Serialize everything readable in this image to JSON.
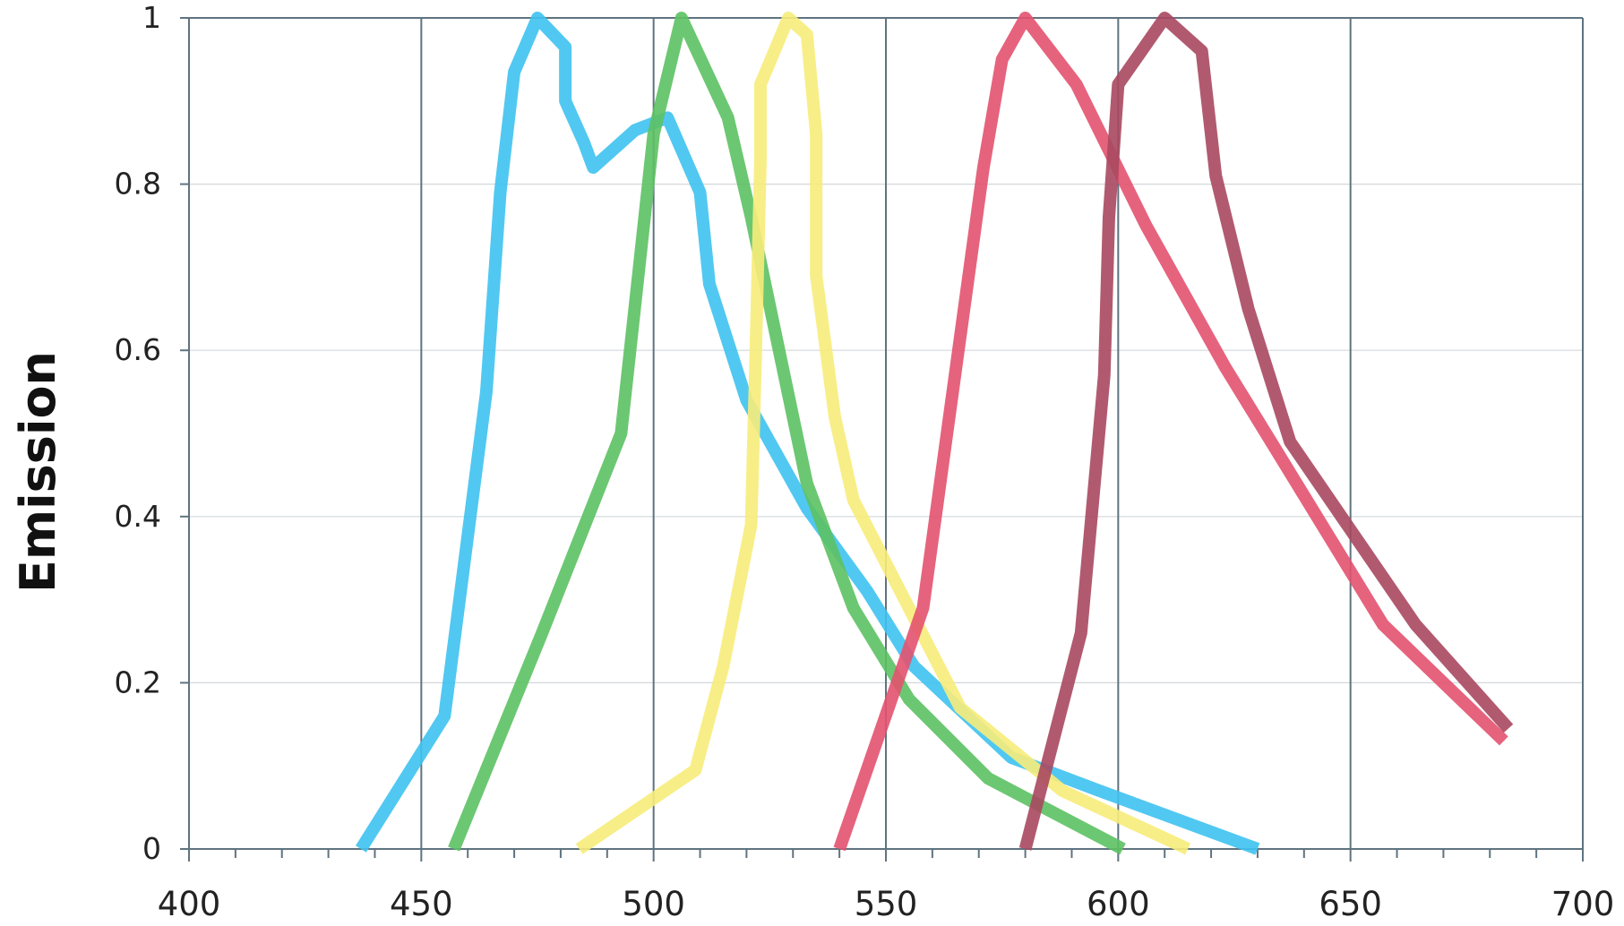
{
  "chart_data": {
    "type": "line",
    "title": "",
    "xlabel": "",
    "ylabel": "Emission",
    "xlim": [
      400,
      700
    ],
    "ylim": [
      0,
      1
    ],
    "x_major_ticks": [
      400,
      450,
      500,
      550,
      600,
      650,
      700
    ],
    "x_tick_labels": [
      "400",
      "450",
      "500",
      "550",
      "600",
      "650",
      "700"
    ],
    "y_ticks": [
      0,
      0.2,
      0.4,
      0.6,
      0.8,
      1
    ],
    "y_tick_labels": [
      "0",
      "0.2",
      "0.4",
      "0.6",
      "0.8",
      "1"
    ],
    "x_minor_tick_step": 10,
    "grid": {
      "vertical": true,
      "horizontal": true
    },
    "legend": "none",
    "colors": {
      "axis": "#5f7380",
      "vertical_grid": "#5f7380",
      "horizontal_grid": "#d3d8db",
      "text": "#222222"
    },
    "series": [
      {
        "color": "#3ec2ef",
        "points": [
          [
            437,
            0
          ],
          [
            455,
            0.16
          ],
          [
            464,
            0.55
          ],
          [
            467,
            0.79
          ],
          [
            470,
            0.935
          ],
          [
            475,
            1
          ],
          [
            481,
            0.965
          ],
          [
            481,
            0.9
          ],
          [
            485,
            0.85
          ],
          [
            487,
            0.82
          ],
          [
            496,
            0.865
          ],
          [
            503,
            0.88
          ],
          [
            510,
            0.79
          ],
          [
            512,
            0.68
          ],
          [
            520,
            0.54
          ],
          [
            533,
            0.41
          ],
          [
            546,
            0.31
          ],
          [
            556,
            0.22
          ],
          [
            577,
            0.11
          ],
          [
            596,
            0.07
          ],
          [
            630,
            0
          ]
        ]
      },
      {
        "color": "#5cc163",
        "points": [
          [
            457,
            0
          ],
          [
            476,
            0.26
          ],
          [
            493,
            0.5
          ],
          [
            500,
            0.86
          ],
          [
            506,
            1
          ],
          [
            516,
            0.88
          ],
          [
            521,
            0.76
          ],
          [
            533,
            0.44
          ],
          [
            543,
            0.29
          ],
          [
            555,
            0.18
          ],
          [
            572,
            0.085
          ],
          [
            601,
            0
          ]
        ]
      },
      {
        "color": "#f7ec7a",
        "points": [
          [
            484,
            0
          ],
          [
            509,
            0.095
          ],
          [
            515,
            0.22
          ],
          [
            521,
            0.39
          ],
          [
            522,
            0.6
          ],
          [
            523,
            0.83
          ],
          [
            523,
            0.92
          ],
          [
            529,
            1
          ],
          [
            533,
            0.98
          ],
          [
            535,
            0.86
          ],
          [
            535,
            0.69
          ],
          [
            539,
            0.52
          ],
          [
            543,
            0.42
          ],
          [
            566,
            0.17
          ],
          [
            588,
            0.07
          ],
          [
            615,
            0
          ]
        ]
      },
      {
        "color": "#e3526f",
        "points": [
          [
            540,
            0
          ],
          [
            558,
            0.29
          ],
          [
            571,
            0.82
          ],
          [
            575,
            0.95
          ],
          [
            580,
            1
          ],
          [
            591,
            0.92
          ],
          [
            606,
            0.75
          ],
          [
            623,
            0.58
          ],
          [
            634,
            0.48
          ],
          [
            657,
            0.27
          ],
          [
            683,
            0.13
          ]
        ]
      },
      {
        "color": "#a8485f",
        "points": [
          [
            580,
            0
          ],
          [
            592,
            0.26
          ],
          [
            597,
            0.57
          ],
          [
            598,
            0.76
          ],
          [
            600,
            0.92
          ],
          [
            610,
            1
          ],
          [
            618,
            0.96
          ],
          [
            621,
            0.81
          ],
          [
            628,
            0.65
          ],
          [
            637,
            0.49
          ],
          [
            664,
            0.27
          ],
          [
            684,
            0.145
          ]
        ]
      }
    ]
  }
}
